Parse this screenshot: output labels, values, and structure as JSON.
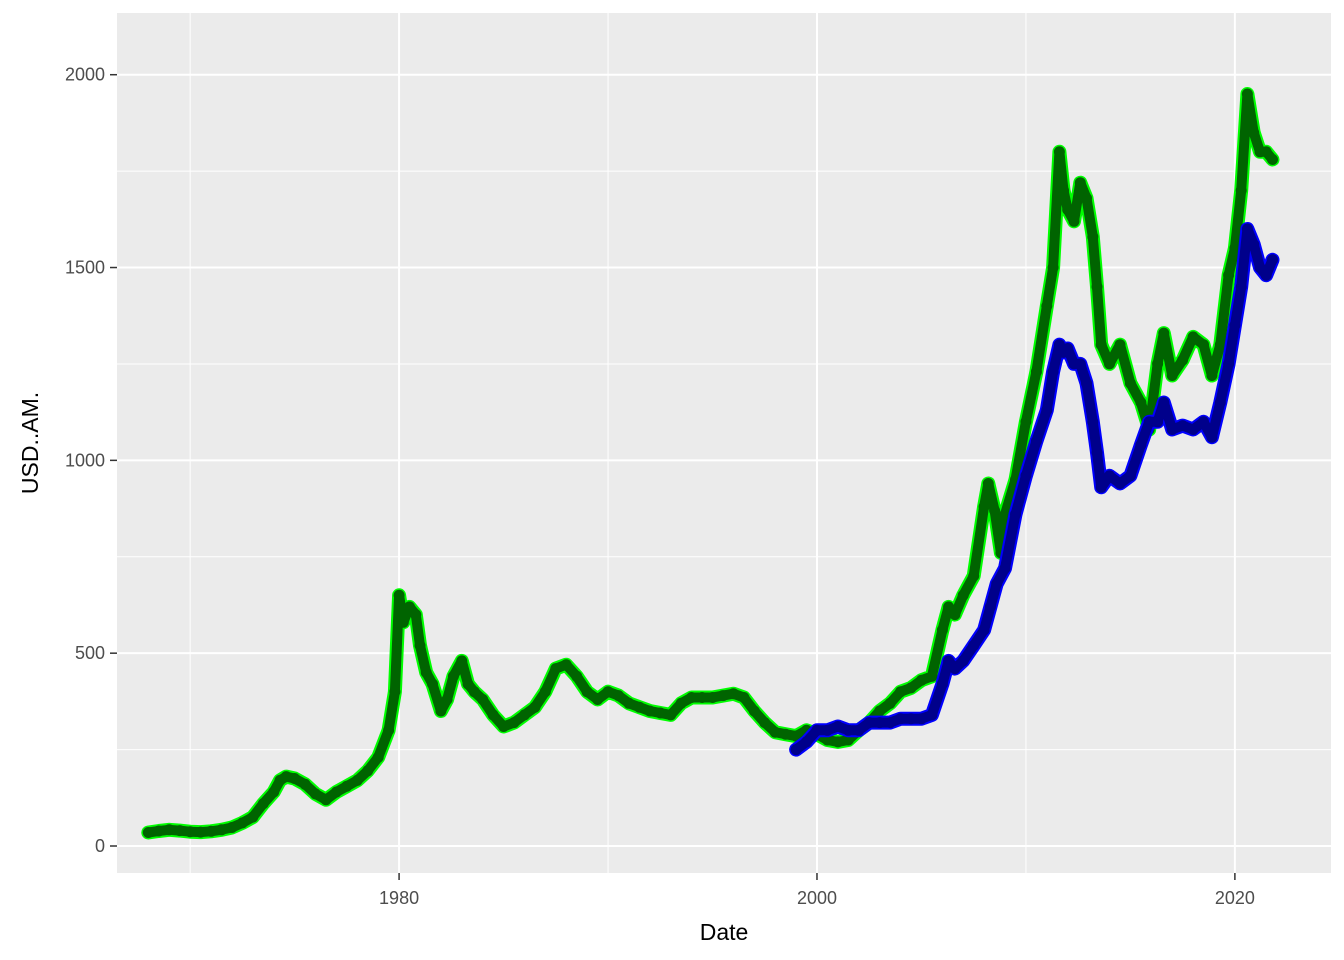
{
  "chart_data": {
    "type": "scatter",
    "xlabel": "Date",
    "ylabel": "USD..AM.",
    "xlim": [
      1966.5,
      2024.6
    ],
    "ylim": [
      -70,
      2160
    ],
    "x_ticks": [
      1980,
      2000,
      2020
    ],
    "x_minor_ticks": [
      1970,
      1990,
      2010
    ],
    "x_tick_labels": [
      "1980",
      "2000",
      "2020"
    ],
    "y_ticks": [
      0,
      500,
      1000,
      1500,
      2000
    ],
    "y_minor_ticks": [
      250,
      750,
      1250,
      1750
    ],
    "y_tick_labels": [
      "0",
      "500",
      "1000",
      "1500",
      "2000"
    ],
    "grid": true,
    "legend": "none",
    "colors": {
      "panel_bg": "#ebebeb",
      "grid": "#ffffff",
      "series_green_light": "#00ff00",
      "series_green_dark": "#006400",
      "series_blue_light": "#0000ff",
      "series_blue_dark": "#00008b"
    },
    "series": [
      {
        "color": "#006400",
        "highlight": "#00ff00",
        "x": [
          1968.0,
          1968.5,
          1969.0,
          1969.5,
          1970.0,
          1970.5,
          1971.0,
          1971.5,
          1972.0,
          1972.5,
          1973.0,
          1973.5,
          1974.0,
          1974.3,
          1974.6,
          1975.0,
          1975.5,
          1976.0,
          1976.5,
          1977.0,
          1977.5,
          1978.0,
          1978.5,
          1979.0,
          1979.5,
          1979.8,
          1980.0,
          1980.2,
          1980.5,
          1980.8,
          1981.0,
          1981.3,
          1981.6,
          1982.0,
          1982.3,
          1982.6,
          1983.0,
          1983.3,
          1983.6,
          1984.0,
          1984.5,
          1985.0,
          1985.5,
          1986.0,
          1986.5,
          1987.0,
          1987.5,
          1988.0,
          1988.5,
          1989.0,
          1989.5,
          1990.0,
          1990.5,
          1991.0,
          1991.5,
          1992.0,
          1992.5,
          1993.0,
          1993.5,
          1994.0,
          1994.5,
          1995.0,
          1995.5,
          1996.0,
          1996.5,
          1997.0,
          1997.5,
          1998.0,
          1998.5,
          1999.0,
          1999.5,
          2000.0,
          2000.5,
          2001.0,
          2001.5,
          2002.0,
          2002.5,
          2003.0,
          2003.5,
          2004.0,
          2004.5,
          2005.0,
          2005.5,
          2006.0,
          2006.3,
          2006.6,
          2007.0,
          2007.5,
          2008.0,
          2008.2,
          2008.5,
          2008.8,
          2009.0,
          2009.5,
          2010.0,
          2010.5,
          2011.0,
          2011.3,
          2011.6,
          2011.8,
          2012.0,
          2012.3,
          2012.6,
          2012.9,
          2013.2,
          2013.4,
          2013.6,
          2014.0,
          2014.5,
          2015.0,
          2015.5,
          2015.9,
          2016.3,
          2016.6,
          2017.0,
          2017.5,
          2018.0,
          2018.5,
          2018.9,
          2019.3,
          2019.7,
          2020.0,
          2020.3,
          2020.6,
          2020.9,
          2021.2,
          2021.5,
          2021.8
        ],
        "y": [
          35,
          39,
          42,
          40,
          37,
          36,
          38,
          42,
          48,
          60,
          75,
          110,
          140,
          170,
          180,
          175,
          160,
          135,
          120,
          140,
          155,
          170,
          195,
          230,
          300,
          400,
          650,
          580,
          620,
          600,
          520,
          450,
          420,
          350,
          380,
          440,
          480,
          420,
          400,
          380,
          340,
          310,
          320,
          340,
          360,
          400,
          460,
          470,
          440,
          400,
          380,
          400,
          390,
          370,
          360,
          350,
          345,
          340,
          370,
          385,
          385,
          385,
          390,
          395,
          385,
          350,
          320,
          295,
          290,
          285,
          300,
          290,
          275,
          270,
          275,
          300,
          320,
          350,
          370,
          400,
          410,
          430,
          440,
          560,
          620,
          600,
          650,
          700,
          880,
          940,
          870,
          760,
          860,
          950,
          1100,
          1230,
          1400,
          1500,
          1800,
          1700,
          1650,
          1620,
          1720,
          1680,
          1580,
          1450,
          1300,
          1250,
          1300,
          1200,
          1150,
          1080,
          1250,
          1330,
          1220,
          1260,
          1320,
          1300,
          1220,
          1300,
          1480,
          1550,
          1700,
          1950,
          1850,
          1800,
          1800,
          1780
        ]
      },
      {
        "color": "#00008b",
        "highlight": "#0000ff",
        "x": [
          1999.0,
          1999.5,
          2000.0,
          2000.5,
          2001.0,
          2001.5,
          2002.0,
          2002.5,
          2003.0,
          2003.5,
          2004.0,
          2004.5,
          2005.0,
          2005.5,
          2006.0,
          2006.3,
          2006.6,
          2007.0,
          2007.5,
          2008.0,
          2008.3,
          2008.6,
          2009.0,
          2009.5,
          2010.0,
          2010.5,
          2011.0,
          2011.3,
          2011.6,
          2011.8,
          2012.0,
          2012.3,
          2012.6,
          2012.9,
          2013.2,
          2013.4,
          2013.6,
          2014.0,
          2014.5,
          2015.0,
          2015.5,
          2015.9,
          2016.3,
          2016.6,
          2017.0,
          2017.5,
          2018.0,
          2018.5,
          2018.9,
          2019.3,
          2019.7,
          2020.0,
          2020.3,
          2020.6,
          2020.9,
          2021.2,
          2021.5,
          2021.8
        ],
        "y": [
          250,
          270,
          300,
          300,
          310,
          300,
          300,
          320,
          320,
          320,
          330,
          330,
          330,
          340,
          420,
          480,
          460,
          480,
          520,
          560,
          620,
          680,
          720,
          860,
          960,
          1050,
          1130,
          1230,
          1300,
          1280,
          1290,
          1250,
          1250,
          1200,
          1100,
          1020,
          930,
          960,
          940,
          960,
          1040,
          1100,
          1100,
          1150,
          1080,
          1090,
          1080,
          1100,
          1060,
          1150,
          1250,
          1350,
          1450,
          1600,
          1560,
          1500,
          1480,
          1520
        ]
      }
    ]
  }
}
